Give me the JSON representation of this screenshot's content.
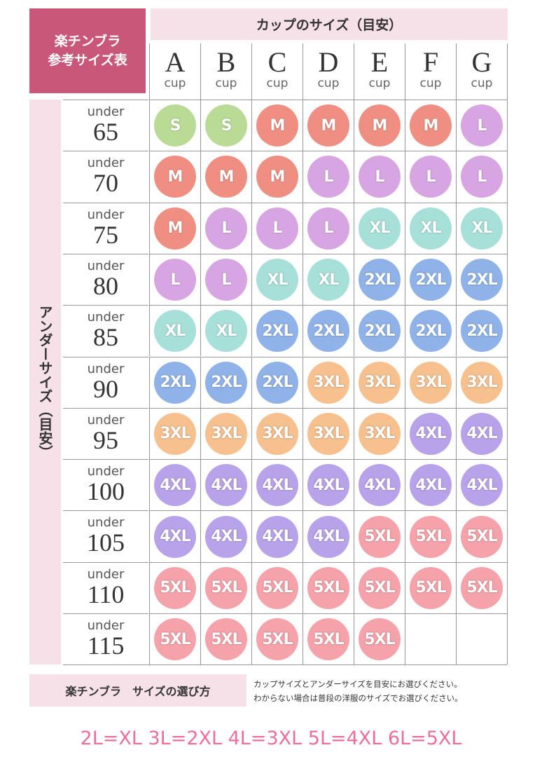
{
  "header": {
    "title_lines": [
      "楽チンブラ",
      "参考サイズ表"
    ],
    "cup_heading": "カップのサイズ（目安）"
  },
  "cups": [
    {
      "letter": "A",
      "unit": "cup"
    },
    {
      "letter": "B",
      "unit": "cup"
    },
    {
      "letter": "C",
      "unit": "cup"
    },
    {
      "letter": "D",
      "unit": "cup"
    },
    {
      "letter": "E",
      "unit": "cup"
    },
    {
      "letter": "F",
      "unit": "cup"
    },
    {
      "letter": "G",
      "unit": "cup"
    }
  ],
  "side_label": "アンダーサイズ（目安）",
  "size_colors": {
    "S": "#b9db95",
    "M": "#ef8f82",
    "L": "#d7a6e2",
    "XL": "#a6e0d8",
    "2XL": "#8fb2e8",
    "3XL": "#f6c08f",
    "4XL": "#b8a2ea",
    "5XL": "#f5a2aa"
  },
  "rows": [
    {
      "under": "under",
      "size": "65",
      "cells": [
        "S",
        "S",
        "M",
        "M",
        "M",
        "M",
        "L"
      ]
    },
    {
      "under": "under",
      "size": "70",
      "cells": [
        "M",
        "M",
        "M",
        "L",
        "L",
        "L",
        "L"
      ]
    },
    {
      "under": "under",
      "size": "75",
      "cells": [
        "M",
        "L",
        "L",
        "L",
        "XL",
        "XL",
        "XL"
      ]
    },
    {
      "under": "under",
      "size": "80",
      "cells": [
        "L",
        "L",
        "XL",
        "XL",
        "2XL",
        "2XL",
        "2XL"
      ]
    },
    {
      "under": "under",
      "size": "85",
      "cells": [
        "XL",
        "XL",
        "2XL",
        "2XL",
        "2XL",
        "2XL",
        "2XL"
      ]
    },
    {
      "under": "under",
      "size": "90",
      "cells": [
        "2XL",
        "2XL",
        "2XL",
        "3XL",
        "3XL",
        "3XL",
        "3XL"
      ]
    },
    {
      "under": "under",
      "size": "95",
      "cells": [
        "3XL",
        "3XL",
        "3XL",
        "3XL",
        "3XL",
        "4XL",
        "4XL"
      ]
    },
    {
      "under": "under",
      "size": "100",
      "cells": [
        "4XL",
        "4XL",
        "4XL",
        "4XL",
        "4XL",
        "4XL",
        "4XL"
      ]
    },
    {
      "under": "under",
      "size": "105",
      "cells": [
        "4XL",
        "4XL",
        "4XL",
        "4XL",
        "5XL",
        "5XL",
        "5XL"
      ]
    },
    {
      "under": "under",
      "size": "110",
      "cells": [
        "5XL",
        "5XL",
        "5XL",
        "5XL",
        "5XL",
        "5XL",
        "5XL"
      ]
    },
    {
      "under": "under",
      "size": "115",
      "cells": [
        "5XL",
        "5XL",
        "5XL",
        "5XL",
        "5XL",
        null,
        null
      ]
    }
  ],
  "footer": {
    "title": "楽チンブラ　サイズの選び方",
    "notes": [
      "カップサイズとアンダーサイズを目安にお選びください。",
      "わからない場合は普段の洋服のサイズでお選びください。"
    ]
  },
  "equivalence": "2L=XL 3L=2XL 4L=3XL 5L=4XL 6L=5XL"
}
